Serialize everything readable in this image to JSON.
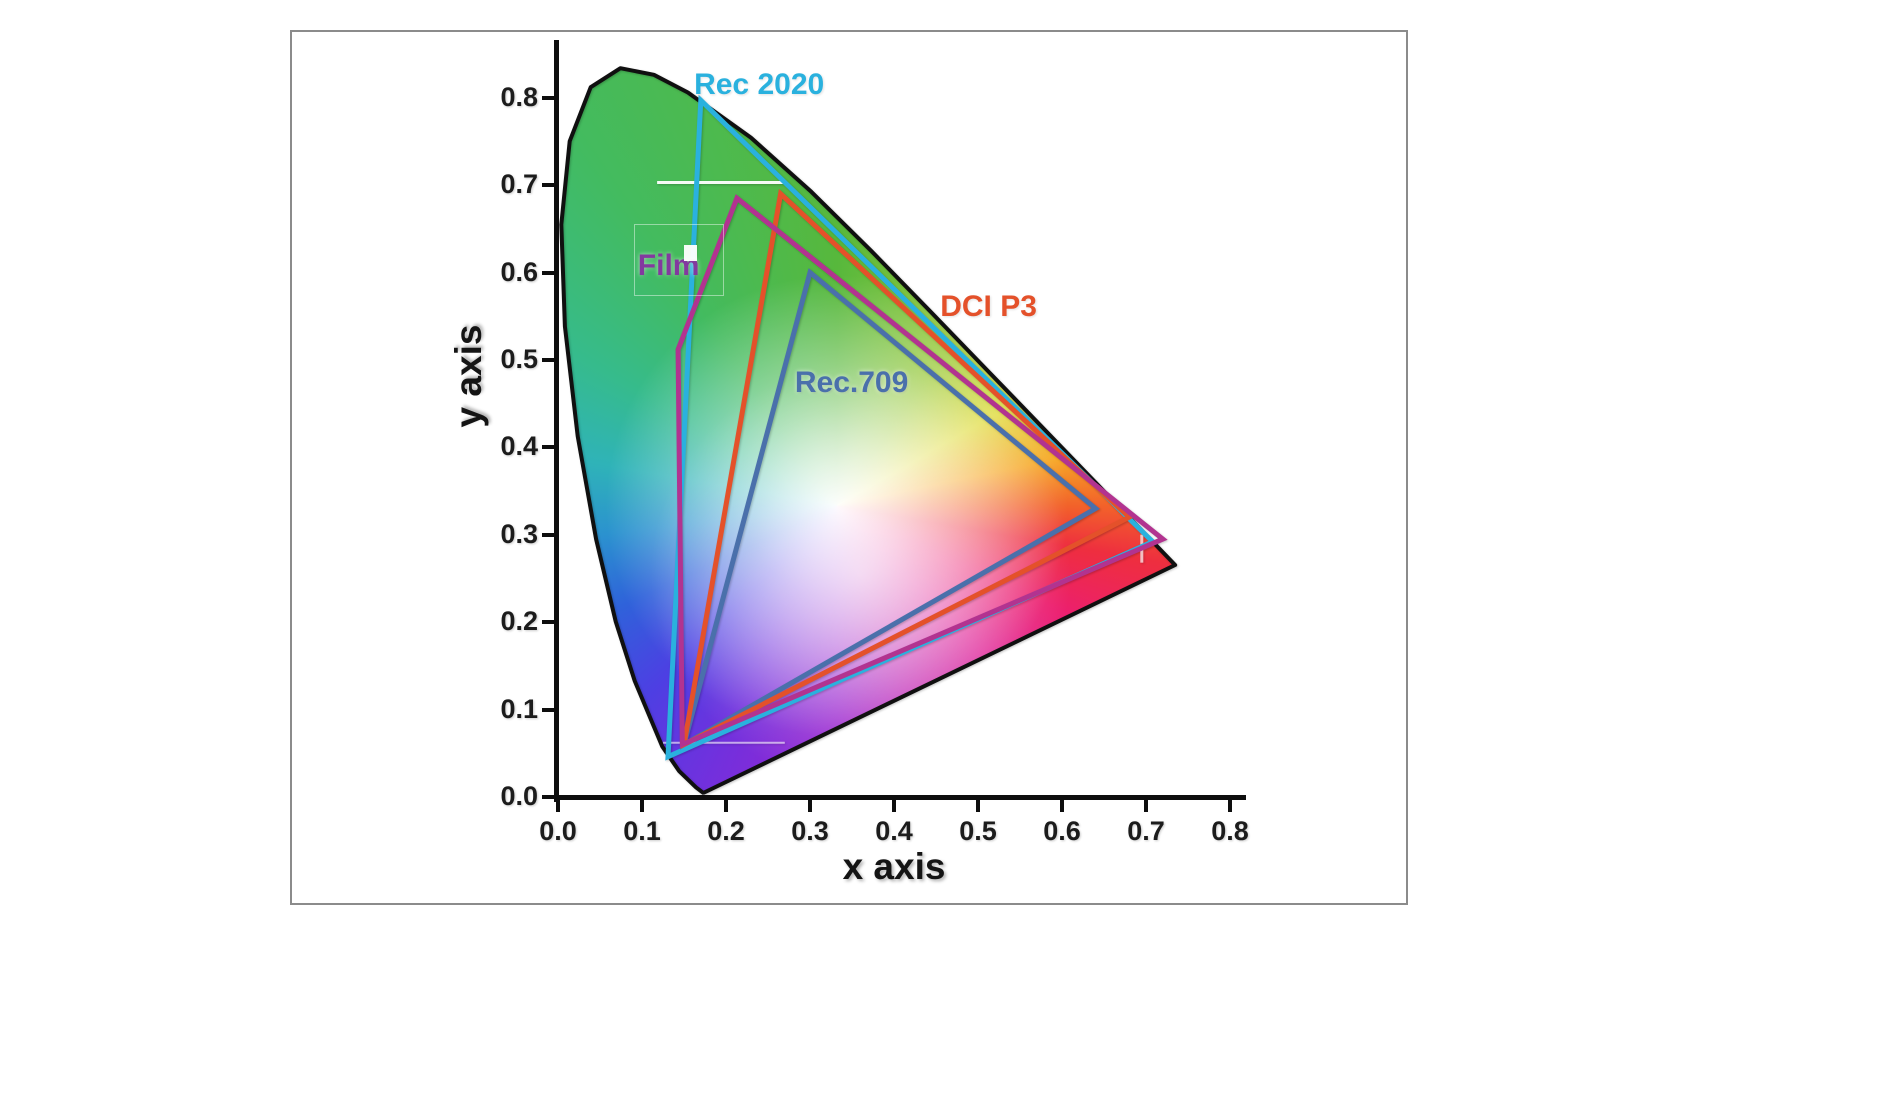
{
  "chart_data": {
    "type": "area",
    "subtype": "CIE 1931 xy chromaticity diagram with color gamut overlays",
    "title": "",
    "xlabel": "x axis",
    "ylabel": "y axis",
    "xlim": [
      0.0,
      0.8
    ],
    "ylim": [
      0.0,
      0.85
    ],
    "x_ticks": [
      "0.0",
      "0.1",
      "0.2",
      "0.3",
      "0.4",
      "0.5",
      "0.6",
      "0.7",
      "0.8"
    ],
    "y_ticks": [
      "0.0",
      "0.1",
      "0.2",
      "0.3",
      "0.4",
      "0.5",
      "0.6",
      "0.7",
      "0.8"
    ],
    "grid": false,
    "legend_position": "inline-labels",
    "white_point": [
      0.333,
      0.333
    ],
    "spectral_locus": [
      [
        0.1741,
        0.005
      ],
      [
        0.1726,
        0.0048
      ],
      [
        0.1644,
        0.0109
      ],
      [
        0.144,
        0.0297
      ],
      [
        0.1241,
        0.0578
      ],
      [
        0.0913,
        0.1327
      ],
      [
        0.0687,
        0.2007
      ],
      [
        0.0454,
        0.295
      ],
      [
        0.0235,
        0.4127
      ],
      [
        0.0082,
        0.5384
      ],
      [
        0.0039,
        0.6548
      ],
      [
        0.0139,
        0.7502
      ],
      [
        0.0389,
        0.812
      ],
      [
        0.0743,
        0.8338
      ],
      [
        0.1142,
        0.8262
      ],
      [
        0.1547,
        0.8059
      ],
      [
        0.2296,
        0.7543
      ],
      [
        0.3016,
        0.6923
      ],
      [
        0.3731,
        0.6245
      ],
      [
        0.4441,
        0.5547
      ],
      [
        0.5125,
        0.4866
      ],
      [
        0.5752,
        0.4242
      ],
      [
        0.627,
        0.3725
      ],
      [
        0.6658,
        0.334
      ],
      [
        0.6915,
        0.3083
      ],
      [
        0.714,
        0.2859
      ],
      [
        0.7347,
        0.2653
      ]
    ],
    "series": [
      {
        "name": "Rec 2020",
        "color": "#2ab1de",
        "label_color": "#2ab1de",
        "label_pos": [
          0.162,
          0.815
        ],
        "points": [
          [
            0.708,
            0.292
          ],
          [
            0.17,
            0.797
          ],
          [
            0.131,
            0.046
          ]
        ]
      },
      {
        "name": "DCI P3",
        "color": "#e4512a",
        "label_color": "#e4512a",
        "label_pos": [
          0.455,
          0.561
        ],
        "points": [
          [
            0.68,
            0.32
          ],
          [
            0.265,
            0.69
          ],
          [
            0.15,
            0.06
          ]
        ]
      },
      {
        "name": "Rec.709",
        "color": "#4a70ab",
        "label_color": "#4a70ab",
        "label_pos": [
          0.282,
          0.473
        ],
        "points": [
          [
            0.64,
            0.33
          ],
          [
            0.3,
            0.6
          ],
          [
            0.15,
            0.06
          ]
        ]
      },
      {
        "name": "Film",
        "color": "#b23390",
        "label_color": "#83399f",
        "label_pos": [
          0.095,
          0.607
        ],
        "points": [
          [
            0.72,
            0.295
          ],
          [
            0.213,
            0.685
          ],
          [
            0.143,
            0.512
          ],
          [
            0.148,
            0.06
          ]
        ]
      }
    ],
    "draw_order": [
      0,
      2,
      1,
      3
    ],
    "line_width": 5,
    "outline_color": "#101010",
    "artifacts": [
      {
        "type": "line",
        "from": [
          0.118,
          0.703
        ],
        "to": [
          0.272,
          0.703
        ],
        "width": 3,
        "opacity": 0.95
      },
      {
        "type": "line",
        "from": [
          0.125,
          0.062
        ],
        "to": [
          0.27,
          0.062
        ],
        "width": 2,
        "opacity": 0.6
      },
      {
        "type": "line",
        "from": [
          0.695,
          0.268
        ],
        "to": [
          0.695,
          0.3
        ],
        "width": 3,
        "opacity": 0.7
      },
      {
        "type": "rect",
        "x": 0.09,
        "y": 0.575,
        "w": 0.105,
        "h": 0.08,
        "fill": "none",
        "opacity": 0.45
      },
      {
        "type": "rect",
        "x": 0.15,
        "y": 0.613,
        "w": 0.016,
        "h": 0.018,
        "fill": "#ffffff",
        "opacity": 0.95
      }
    ]
  }
}
